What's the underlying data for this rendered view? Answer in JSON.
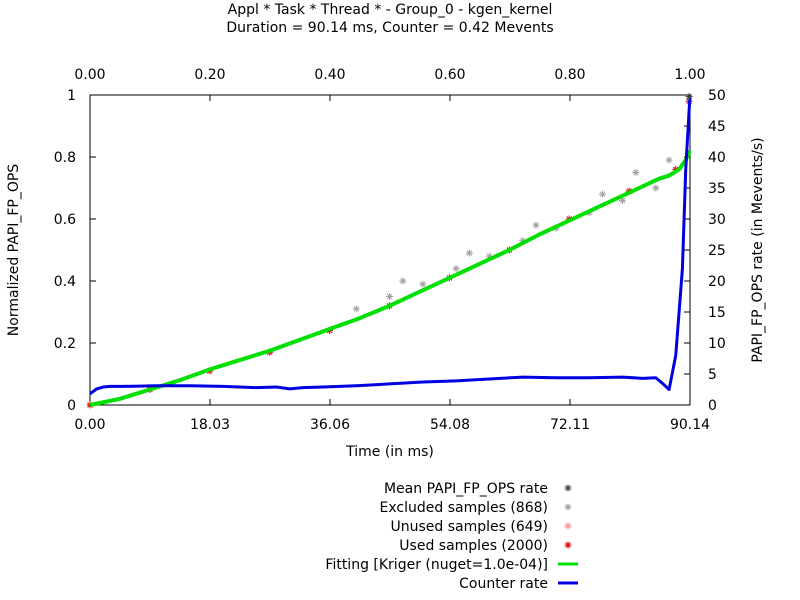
{
  "chart_data": {
    "type": "scatter",
    "title": "Appl * Task * Thread * - Group_0 - kgen_kernel",
    "subtitle": "Duration = 90.14 ms, Counter = 0.42 Mevents",
    "xlabel": "Time (in ms)",
    "ylabel": "Normalized PAPI_FP_OPS",
    "y2label": "PAPI_FP_OPS rate (in Mevents/s)",
    "xlim": [
      0,
      90.14
    ],
    "ylim": [
      0,
      1
    ],
    "x2lim": [
      0,
      1
    ],
    "y2lim": [
      0,
      50
    ],
    "x_ticks": [
      "0.00",
      "18.03",
      "36.06",
      "54.08",
      "72.11",
      "90.14"
    ],
    "x2_ticks": [
      "0.00",
      "0.20",
      "0.40",
      "0.60",
      "0.80",
      "1.00"
    ],
    "y_ticks": [
      "0",
      "0.2",
      "0.4",
      "0.6",
      "0.8",
      "1"
    ],
    "y2_ticks": [
      "0",
      "5",
      "10",
      "15",
      "20",
      "25",
      "30",
      "35",
      "40",
      "45",
      "50"
    ],
    "grid": false,
    "legend_position": "bottom-center",
    "series": [
      {
        "name": "Mean PAPI_FP_OPS rate",
        "color": "#404040",
        "marker": "asterisk",
        "points": [
          [
            90.0,
            0.995
          ]
        ]
      },
      {
        "name": "Excluded samples (868)",
        "color": "#a0a0a0",
        "marker": "asterisk",
        "points": [
          [
            40.0,
            0.31
          ],
          [
            45.0,
            0.35
          ],
          [
            50.0,
            0.39
          ],
          [
            55.0,
            0.44
          ],
          [
            60.0,
            0.48
          ],
          [
            65.0,
            0.53
          ],
          [
            70.0,
            0.57
          ],
          [
            75.0,
            0.62
          ],
          [
            80.0,
            0.66
          ],
          [
            85.0,
            0.7
          ],
          [
            47.0,
            0.4
          ],
          [
            57.0,
            0.49
          ],
          [
            67.0,
            0.58
          ],
          [
            77.0,
            0.68
          ],
          [
            82.0,
            0.75
          ],
          [
            87.0,
            0.79
          ]
        ]
      },
      {
        "name": "Unused samples (649)",
        "color": "#ff9090",
        "marker": "asterisk",
        "points": []
      },
      {
        "name": "Used samples (2000)",
        "color": "#e00000",
        "marker": "asterisk",
        "points": [
          [
            0.0,
            0.0
          ],
          [
            9.0,
            0.05
          ],
          [
            18.0,
            0.11
          ],
          [
            27.0,
            0.17
          ],
          [
            36.0,
            0.24
          ],
          [
            45.0,
            0.32
          ],
          [
            54.0,
            0.41
          ],
          [
            63.0,
            0.5
          ],
          [
            72.0,
            0.6
          ],
          [
            81.0,
            0.69
          ],
          [
            88.0,
            0.76
          ],
          [
            90.0,
            0.98
          ]
        ]
      },
      {
        "name": "Fitting [Kriger (nuget=1.0e-04)]",
        "color": "#00e000",
        "type": "line",
        "x": [
          0,
          4.5,
          9,
          13.5,
          18,
          22.5,
          27,
          31.5,
          36,
          40.5,
          45,
          49.5,
          54,
          58.5,
          63,
          67.5,
          72,
          76.5,
          81,
          85.5,
          87,
          88.5,
          89.5,
          90.14
        ],
        "y": [
          0.0,
          0.02,
          0.05,
          0.08,
          0.115,
          0.145,
          0.175,
          0.21,
          0.245,
          0.28,
          0.32,
          0.365,
          0.41,
          0.455,
          0.5,
          0.55,
          0.595,
          0.64,
          0.685,
          0.73,
          0.74,
          0.76,
          0.79,
          0.82
        ]
      },
      {
        "name": "Counter rate",
        "color": "#0000e0",
        "type": "line",
        "axis": "right",
        "x": [
          0,
          1,
          2,
          3,
          5,
          10,
          15,
          20,
          25,
          28,
          30,
          32,
          35,
          40,
          45,
          50,
          55,
          60,
          65,
          70,
          75,
          80,
          83,
          85,
          86,
          87,
          88,
          89,
          89.5,
          90.14
        ],
        "y": [
          1.8,
          2.6,
          2.9,
          3.0,
          3.0,
          3.1,
          3.1,
          3.0,
          2.8,
          2.9,
          2.6,
          2.8,
          2.9,
          3.1,
          3.4,
          3.7,
          3.9,
          4.2,
          4.5,
          4.4,
          4.4,
          4.5,
          4.3,
          4.4,
          3.5,
          2.5,
          8.0,
          22.0,
          38.0,
          50.0
        ]
      }
    ]
  }
}
